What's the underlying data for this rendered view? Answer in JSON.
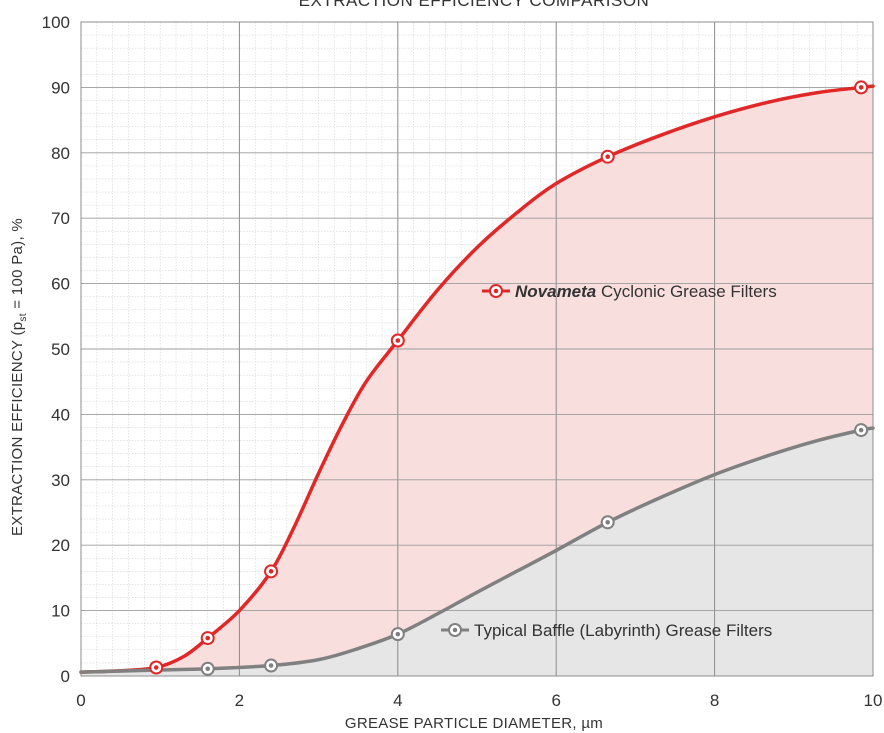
{
  "chart_data": {
    "type": "area",
    "title": "EXTRACTION EFFICIENCY COMPARISON",
    "xlabel": "GREASE PARTICLE DIAMETER, µm",
    "ylabel": {
      "prefix": "EXTRACTION EFFICIENCY (p",
      "subscript": "st",
      "suffix": " = 100 Pa), %"
    },
    "xlim": [
      0,
      10
    ],
    "ylim": [
      0,
      100
    ],
    "x_ticks": [
      0,
      2,
      4,
      6,
      8,
      10
    ],
    "y_ticks": [
      0,
      10,
      20,
      30,
      40,
      50,
      60,
      70,
      80,
      90,
      100
    ],
    "grid": true,
    "legend_placement": "inline",
    "series": [
      {
        "name": "Novameta Cyclonic Grease Filters",
        "legend_brand": "Novameta",
        "legend_rest": " Cyclonic Grease Filters",
        "color": "#e02828",
        "fill": "#f9dede",
        "curve_x": [
          0,
          0.5,
          0.95,
          1.3,
          1.6,
          2.0,
          2.4,
          2.7,
          3.0,
          3.3,
          3.6,
          4.0,
          4.5,
          5.0,
          5.5,
          6.0,
          6.65,
          7.3,
          8.0,
          8.7,
          9.3,
          9.85,
          10.0
        ],
        "curve_y": [
          0.6,
          0.8,
          1.3,
          3.0,
          5.8,
          10.0,
          16.0,
          23.0,
          31.0,
          38.5,
          45.0,
          51.3,
          59.0,
          65.5,
          70.8,
          75.3,
          79.4,
          82.6,
          85.5,
          87.8,
          89.2,
          90.0,
          90.2
        ],
        "markers_x": [
          0.95,
          1.6,
          2.4,
          4.0,
          6.65,
          9.85
        ],
        "markers_y": [
          1.3,
          5.8,
          16.0,
          51.3,
          79.4,
          90.0
        ]
      },
      {
        "name": "Typical Baffle (Labyrinth) Grease Filters",
        "color": "#808080",
        "fill": "#e6e6e6",
        "curve_x": [
          0,
          0.95,
          1.6,
          2.4,
          3.0,
          3.5,
          4.0,
          4.5,
          5.0,
          5.5,
          6.0,
          6.65,
          7.3,
          8.0,
          8.7,
          9.3,
          9.85,
          10.0
        ],
        "curve_y": [
          0.6,
          0.9,
          1.1,
          1.6,
          2.5,
          4.2,
          6.4,
          9.5,
          12.8,
          16.0,
          19.2,
          23.5,
          27.2,
          30.8,
          33.8,
          36.0,
          37.6,
          37.9
        ],
        "markers_x": [
          1.6,
          2.4,
          4.0,
          6.65,
          9.85
        ],
        "markers_y": [
          1.1,
          1.6,
          6.4,
          23.5,
          37.6
        ]
      }
    ]
  }
}
